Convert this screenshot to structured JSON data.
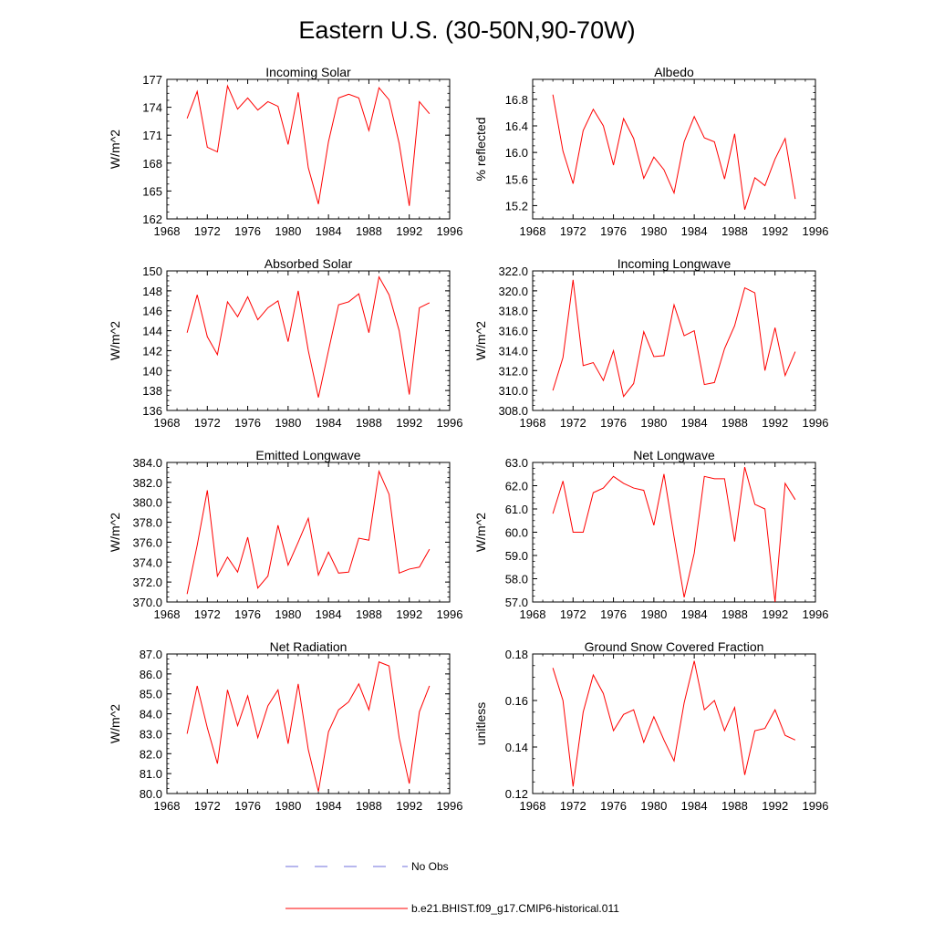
{
  "figure": {
    "title": "Eastern U.S. (30-50N,90-70W)"
  },
  "colors": {
    "model": "#ff0000",
    "obs": "#6f6fdc",
    "axis": "#000000"
  },
  "legend": {
    "obs_label": "No Obs",
    "model_label": "b.e21.BHIST.f09_g17.CMIP6-historical.011"
  },
  "chart_data": [
    {
      "type": "line",
      "title": "Incoming Solar",
      "ylabel": "W/m^2",
      "xlim": [
        1968,
        1996
      ],
      "xticks": [
        1968,
        1972,
        1976,
        1980,
        1984,
        1988,
        1992,
        1996
      ],
      "ylim": [
        162,
        177
      ],
      "yticks": [
        162,
        165,
        168,
        171,
        174,
        177
      ],
      "ytick_format": "0",
      "x": [
        1970,
        1971,
        1972,
        1973,
        1974,
        1975,
        1976,
        1977,
        1978,
        1979,
        1980,
        1981,
        1982,
        1983,
        1984,
        1985,
        1986,
        1987,
        1988,
        1989,
        1990,
        1991,
        1992,
        1993,
        1994
      ],
      "series": [
        {
          "name": "b.e21.BHIST.f09_g17.CMIP6-historical.011",
          "values": [
            172.8,
            175.7,
            169.7,
            169.2,
            176.3,
            173.8,
            175.0,
            173.7,
            174.6,
            174.1,
            170.0,
            175.6,
            167.5,
            163.6,
            170.3,
            175.0,
            175.4,
            175.0,
            171.5,
            176.1,
            174.8,
            170.1,
            163.4,
            174.6,
            173.3
          ]
        }
      ]
    },
    {
      "type": "line",
      "title": "Albedo",
      "ylabel": "% reflected",
      "xlim": [
        1968,
        1996
      ],
      "xticks": [
        1968,
        1972,
        1976,
        1980,
        1984,
        1988,
        1992,
        1996
      ],
      "ylim": [
        15.0,
        17.1
      ],
      "yticks": [
        15.2,
        15.6,
        16.0,
        16.4,
        16.8
      ],
      "ytick_format": "1",
      "x": [
        1970,
        1971,
        1972,
        1973,
        1974,
        1975,
        1976,
        1977,
        1978,
        1979,
        1980,
        1981,
        1982,
        1983,
        1984,
        1985,
        1986,
        1987,
        1988,
        1989,
        1990,
        1991,
        1992,
        1993,
        1994
      ],
      "series": [
        {
          "name": "b.e21.BHIST.f09_g17.CMIP6-historical.011",
          "values": [
            16.87,
            16.02,
            15.53,
            16.33,
            16.65,
            16.4,
            15.81,
            16.51,
            16.21,
            15.61,
            15.93,
            15.74,
            15.39,
            16.16,
            16.54,
            16.22,
            16.16,
            15.6,
            16.28,
            15.14,
            15.62,
            15.5,
            15.9,
            16.21,
            15.3
          ]
        }
      ]
    },
    {
      "type": "line",
      "title": "Absorbed Solar",
      "ylabel": "W/m^2",
      "xlim": [
        1968,
        1996
      ],
      "xticks": [
        1968,
        1972,
        1976,
        1980,
        1984,
        1988,
        1992,
        1996
      ],
      "ylim": [
        136,
        150
      ],
      "yticks": [
        136,
        138,
        140,
        142,
        144,
        146,
        148,
        150
      ],
      "ytick_format": "0",
      "x": [
        1970,
        1971,
        1972,
        1973,
        1974,
        1975,
        1976,
        1977,
        1978,
        1979,
        1980,
        1981,
        1982,
        1983,
        1984,
        1985,
        1986,
        1987,
        1988,
        1989,
        1990,
        1991,
        1992,
        1993,
        1994
      ],
      "series": [
        {
          "name": "b.e21.BHIST.f09_g17.CMIP6-historical.011",
          "values": [
            143.8,
            147.6,
            143.4,
            141.6,
            146.9,
            145.4,
            147.4,
            145.1,
            146.3,
            147.0,
            142.9,
            148.0,
            142.0,
            137.3,
            142.0,
            146.6,
            146.9,
            147.7,
            143.8,
            149.4,
            147.6,
            144.0,
            137.6,
            146.3,
            146.8
          ]
        }
      ]
    },
    {
      "type": "line",
      "title": "Incoming Longwave",
      "ylabel": "W/m^2",
      "xlim": [
        1968,
        1996
      ],
      "xticks": [
        1968,
        1972,
        1976,
        1980,
        1984,
        1988,
        1992,
        1996
      ],
      "ylim": [
        308,
        322
      ],
      "yticks": [
        308,
        310,
        312,
        314,
        316,
        318,
        320,
        322
      ],
      "ytick_format": "1",
      "x": [
        1970,
        1971,
        1972,
        1973,
        1974,
        1975,
        1976,
        1977,
        1978,
        1979,
        1980,
        1981,
        1982,
        1983,
        1984,
        1985,
        1986,
        1987,
        1988,
        1989,
        1990,
        1991,
        1992,
        1993,
        1994
      ],
      "series": [
        {
          "name": "b.e21.BHIST.f09_g17.CMIP6-historical.011",
          "values": [
            310.0,
            313.3,
            321.1,
            312.5,
            312.8,
            311.0,
            314.0,
            309.4,
            310.7,
            315.9,
            313.4,
            313.5,
            318.6,
            315.5,
            316.0,
            310.6,
            310.8,
            314.2,
            316.5,
            320.3,
            319.8,
            312.0,
            316.3,
            311.5,
            313.9
          ]
        }
      ]
    },
    {
      "type": "line",
      "title": "Emitted Longwave",
      "ylabel": "W/m^2",
      "xlim": [
        1968,
        1996
      ],
      "xticks": [
        1968,
        1972,
        1976,
        1980,
        1984,
        1988,
        1992,
        1996
      ],
      "ylim": [
        370,
        384
      ],
      "yticks": [
        370,
        372,
        374,
        376,
        378,
        380,
        382,
        384
      ],
      "ytick_format": "1",
      "x": [
        1970,
        1971,
        1972,
        1973,
        1974,
        1975,
        1976,
        1977,
        1978,
        1979,
        1980,
        1981,
        1982,
        1983,
        1984,
        1985,
        1986,
        1987,
        1988,
        1989,
        1990,
        1991,
        1992,
        1993,
        1994
      ],
      "series": [
        {
          "name": "b.e21.BHIST.f09_g17.CMIP6-historical.011",
          "values": [
            370.8,
            375.7,
            381.2,
            372.6,
            374.5,
            373.0,
            376.5,
            371.4,
            372.6,
            377.7,
            373.7,
            376.0,
            378.4,
            372.7,
            375.0,
            372.9,
            373.0,
            376.4,
            376.2,
            383.1,
            380.8,
            372.9,
            373.3,
            373.5,
            375.3
          ]
        }
      ]
    },
    {
      "type": "line",
      "title": "Net Longwave",
      "ylabel": "W/m^2",
      "xlim": [
        1968,
        1996
      ],
      "xticks": [
        1968,
        1972,
        1976,
        1980,
        1984,
        1988,
        1992,
        1996
      ],
      "ylim": [
        57,
        63
      ],
      "yticks": [
        57,
        58,
        59,
        60,
        61,
        62,
        63
      ],
      "ytick_format": "1",
      "x": [
        1970,
        1971,
        1972,
        1973,
        1974,
        1975,
        1976,
        1977,
        1978,
        1979,
        1980,
        1981,
        1982,
        1983,
        1984,
        1985,
        1986,
        1987,
        1988,
        1989,
        1990,
        1991,
        1992,
        1993,
        1994
      ],
      "series": [
        {
          "name": "b.e21.BHIST.f09_g17.CMIP6-historical.011",
          "values": [
            60.8,
            62.2,
            60.0,
            60.0,
            61.7,
            61.9,
            62.4,
            62.1,
            61.9,
            61.8,
            60.3,
            62.5,
            59.8,
            57.2,
            59.1,
            62.4,
            62.3,
            62.3,
            59.6,
            62.8,
            61.2,
            61.0,
            57.0,
            62.1,
            61.4
          ]
        }
      ]
    },
    {
      "type": "line",
      "title": "Net Radiation",
      "ylabel": "W/m^2",
      "xlim": [
        1968,
        1996
      ],
      "xticks": [
        1968,
        1972,
        1976,
        1980,
        1984,
        1988,
        1992,
        1996
      ],
      "ylim": [
        80,
        87
      ],
      "yticks": [
        80,
        81,
        82,
        83,
        84,
        85,
        86,
        87
      ],
      "ytick_format": "1",
      "x": [
        1970,
        1971,
        1972,
        1973,
        1974,
        1975,
        1976,
        1977,
        1978,
        1979,
        1980,
        1981,
        1982,
        1983,
        1984,
        1985,
        1986,
        1987,
        1988,
        1989,
        1990,
        1991,
        1992,
        1993,
        1994
      ],
      "series": [
        {
          "name": "b.e21.BHIST.f09_g17.CMIP6-historical.011",
          "values": [
            83.0,
            85.4,
            83.3,
            81.5,
            85.2,
            83.4,
            84.9,
            82.8,
            84.4,
            85.2,
            82.5,
            85.5,
            82.2,
            80.1,
            83.1,
            84.2,
            84.6,
            85.5,
            84.2,
            86.6,
            86.4,
            82.8,
            80.5,
            84.1,
            85.4
          ]
        }
      ]
    },
    {
      "type": "line",
      "title": "Ground Snow Covered Fraction",
      "ylabel": "unitless",
      "xlim": [
        1968,
        1996
      ],
      "xticks": [
        1968,
        1972,
        1976,
        1980,
        1984,
        1988,
        1992,
        1996
      ],
      "ylim": [
        0.12,
        0.18
      ],
      "yticks": [
        0.12,
        0.14,
        0.16,
        0.18
      ],
      "ytick_format": "2",
      "x": [
        1970,
        1971,
        1972,
        1973,
        1974,
        1975,
        1976,
        1977,
        1978,
        1979,
        1980,
        1981,
        1982,
        1983,
        1984,
        1985,
        1986,
        1987,
        1988,
        1989,
        1990,
        1991,
        1992,
        1993,
        1994
      ],
      "series": [
        {
          "name": "b.e21.BHIST.f09_g17.CMIP6-historical.011",
          "values": [
            0.174,
            0.16,
            0.123,
            0.155,
            0.171,
            0.163,
            0.147,
            0.154,
            0.156,
            0.142,
            0.153,
            0.143,
            0.134,
            0.159,
            0.177,
            0.156,
            0.16,
            0.147,
            0.157,
            0.128,
            0.147,
            0.148,
            0.156,
            0.145,
            0.143
          ]
        }
      ]
    }
  ]
}
